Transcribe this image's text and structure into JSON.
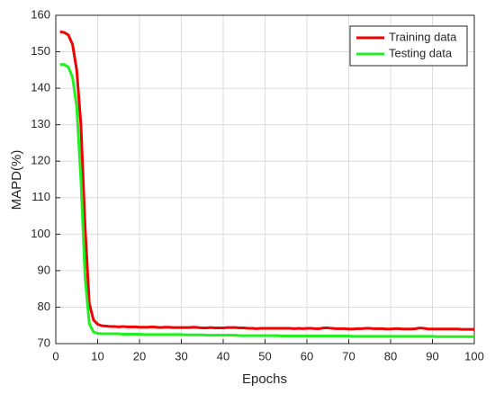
{
  "chart_data": {
    "type": "line",
    "xlabel": "Epochs",
    "ylabel": "MAPD(%)",
    "xlim": [
      0,
      100
    ],
    "xticks": [
      0,
      10,
      20,
      30,
      40,
      50,
      60,
      70,
      80,
      90,
      100
    ],
    "ylim": [
      70,
      160
    ],
    "yticks": [
      70,
      80,
      90,
      100,
      110,
      120,
      130,
      140,
      150,
      160
    ],
    "grid": true,
    "legend": "upper right",
    "x": [
      1,
      2,
      3,
      4,
      5,
      6,
      7,
      8,
      9,
      10,
      11,
      12,
      13,
      14,
      15,
      16,
      17,
      18,
      19,
      20,
      21,
      22,
      23,
      24,
      25,
      26,
      27,
      28,
      29,
      30,
      31,
      32,
      33,
      34,
      35,
      36,
      37,
      38,
      39,
      40,
      41,
      42,
      43,
      44,
      45,
      46,
      47,
      48,
      49,
      50,
      51,
      52,
      53,
      54,
      55,
      56,
      57,
      58,
      59,
      60,
      61,
      62,
      63,
      64,
      65,
      66,
      67,
      68,
      69,
      70,
      71,
      72,
      73,
      74,
      75,
      76,
      77,
      78,
      79,
      80,
      81,
      82,
      83,
      84,
      85,
      86,
      87,
      88,
      89,
      90,
      91,
      92,
      93,
      94,
      95,
      96,
      97,
      98,
      99,
      100
    ],
    "series": [
      {
        "name": "Training data",
        "color": "#ee0000",
        "values": [
          155.5,
          155.3,
          154.6,
          152.0,
          145.0,
          130.0,
          102.0,
          81.0,
          76.5,
          75.3,
          74.9,
          74.8,
          74.7,
          74.7,
          74.6,
          74.7,
          74.6,
          74.6,
          74.6,
          74.5,
          74.5,
          74.5,
          74.6,
          74.5,
          74.4,
          74.5,
          74.5,
          74.4,
          74.4,
          74.4,
          74.4,
          74.4,
          74.5,
          74.4,
          74.3,
          74.3,
          74.4,
          74.3,
          74.3,
          74.3,
          74.4,
          74.4,
          74.4,
          74.3,
          74.3,
          74.2,
          74.2,
          74.1,
          74.2,
          74.2,
          74.2,
          74.2,
          74.2,
          74.2,
          74.2,
          74.2,
          74.1,
          74.2,
          74.1,
          74.2,
          74.2,
          74.1,
          74.1,
          74.3,
          74.3,
          74.2,
          74.1,
          74.1,
          74.1,
          74.0,
          74.0,
          74.1,
          74.1,
          74.2,
          74.2,
          74.1,
          74.1,
          74.1,
          74.0,
          74.0,
          74.1,
          74.1,
          74.0,
          74.0,
          74.0,
          74.1,
          74.3,
          74.2,
          74.0,
          74.0,
          74.0,
          74.0,
          74.0,
          74.0,
          74.0,
          74.0,
          73.9,
          73.9,
          73.9,
          73.9
        ]
      },
      {
        "name": "Testing data",
        "color": "#22ee22",
        "values": [
          146.5,
          146.5,
          145.8,
          143.0,
          135.0,
          115.0,
          88.0,
          75.5,
          73.2,
          72.8,
          72.7,
          72.7,
          72.7,
          72.7,
          72.7,
          72.6,
          72.6,
          72.6,
          72.6,
          72.6,
          72.5,
          72.5,
          72.5,
          72.5,
          72.5,
          72.5,
          72.5,
          72.5,
          72.5,
          72.5,
          72.4,
          72.4,
          72.4,
          72.4,
          72.4,
          72.3,
          72.3,
          72.3,
          72.3,
          72.3,
          72.3,
          72.3,
          72.3,
          72.2,
          72.2,
          72.2,
          72.2,
          72.2,
          72.2,
          72.2,
          72.2,
          72.2,
          72.2,
          72.1,
          72.1,
          72.1,
          72.1,
          72.1,
          72.1,
          72.1,
          72.1,
          72.1,
          72.1,
          72.1,
          72.1,
          72.1,
          72.1,
          72.1,
          72.1,
          72.1,
          72.0,
          72.0,
          72.0,
          72.0,
          72.0,
          72.0,
          72.0,
          72.0,
          72.0,
          72.0,
          72.0,
          72.0,
          72.0,
          72.0,
          72.0,
          72.0,
          72.0,
          72.0,
          72.0,
          72.0,
          71.9,
          71.9,
          71.9,
          71.9,
          71.9,
          71.9,
          71.9,
          71.9,
          71.9,
          71.9
        ]
      }
    ]
  }
}
